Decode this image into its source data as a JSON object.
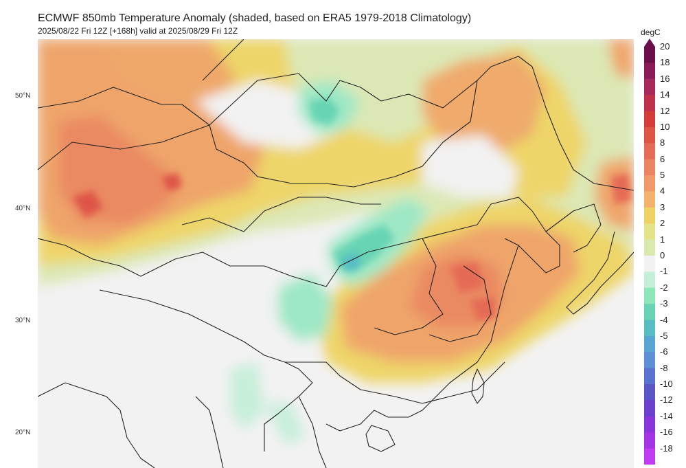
{
  "header": {
    "title": "ECMWF 850mb Temperature Anomaly (shaded, based on ERA5 1979-2018 Climatology)",
    "subtitle": "2025/08/22 Fri 12Z [+168h] valid at 2025/08/29 Fri 12Z"
  },
  "map": {
    "latitude_labels": [
      "50°N",
      "40°N",
      "30°N",
      "20°N"
    ]
  },
  "colorbar": {
    "unit": "degC",
    "levels": [
      {
        "label": "20",
        "color": "#6a0f4b"
      },
      {
        "label": "18",
        "color": "#8a1b58"
      },
      {
        "label": "16",
        "color": "#a82a5a"
      },
      {
        "label": "14",
        "color": "#c0304c"
      },
      {
        "label": "12",
        "color": "#d43b3b"
      },
      {
        "label": "10",
        "color": "#de5546"
      },
      {
        "label": "8",
        "color": "#e56b55"
      },
      {
        "label": "6",
        "color": "#ea8462"
      },
      {
        "label": "5",
        "color": "#ef9a68"
      },
      {
        "label": "4",
        "color": "#f2b46d"
      },
      {
        "label": "3",
        "color": "#eed265"
      },
      {
        "label": "2",
        "color": "#e3e38a"
      },
      {
        "label": "1",
        "color": "#d9e9b0"
      },
      {
        "label": "0",
        "color": "#f2f2f2"
      },
      {
        "label": "-1",
        "color": "#c6efd9"
      },
      {
        "label": "-2",
        "color": "#8ce6b8"
      },
      {
        "label": "-3",
        "color": "#68d4b4"
      },
      {
        "label": "-4",
        "color": "#57bcc4"
      },
      {
        "label": "-5",
        "color": "#5aa4d4"
      },
      {
        "label": "-6",
        "color": "#5b8fd6"
      },
      {
        "label": "-8",
        "color": "#5a72cf"
      },
      {
        "label": "-10",
        "color": "#5c55c8"
      },
      {
        "label": "-12",
        "color": "#6a40cc"
      },
      {
        "label": "-14",
        "color": "#8a35db"
      },
      {
        "label": "-16",
        "color": "#a533e6"
      },
      {
        "label": "-18",
        "color": "#bf3cf0"
      }
    ]
  }
}
